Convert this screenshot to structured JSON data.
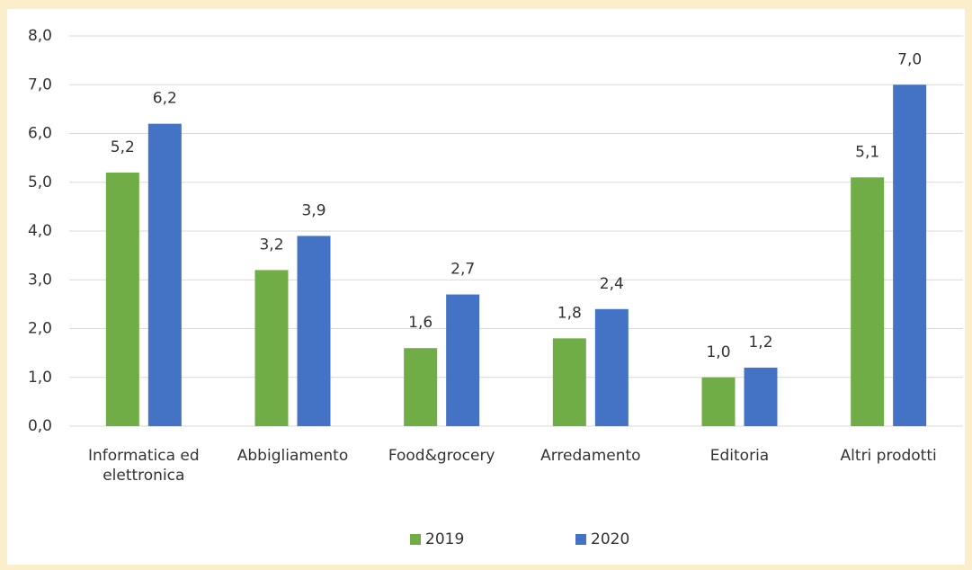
{
  "chart_data": {
    "type": "bar",
    "categories": [
      "Informatica ed elettronica",
      "Abbigliamento",
      "Food&grocery",
      "Arredamento",
      "Editoria",
      "Altri prodotti"
    ],
    "series": [
      {
        "name": "2019",
        "color": "#70ad47",
        "values": [
          5.2,
          3.2,
          1.6,
          1.8,
          1.0,
          5.1
        ],
        "value_labels": [
          "5,2",
          "3,2",
          "1,6",
          "1,8",
          "1,0",
          "5,1"
        ]
      },
      {
        "name": "2020",
        "color": "#4472c4",
        "values": [
          6.2,
          3.9,
          2.7,
          2.4,
          1.2,
          7.0
        ],
        "value_labels": [
          "6,2",
          "3,9",
          "2,7",
          "2,4",
          "1,2",
          "7,0"
        ]
      }
    ],
    "ylim": [
      0,
      8
    ],
    "yticks": [
      {
        "value": 0,
        "label": "0,0"
      },
      {
        "value": 1,
        "label": "1,0"
      },
      {
        "value": 2,
        "label": "2,0"
      },
      {
        "value": 3,
        "label": "3,0"
      },
      {
        "value": 4,
        "label": "4,0"
      },
      {
        "value": 5,
        "label": "5,0"
      },
      {
        "value": 6,
        "label": "6,0"
      },
      {
        "value": 7,
        "label": "7,0"
      },
      {
        "value": 8,
        "label": "8,0"
      }
    ],
    "grid": true,
    "legend": "bottom"
  }
}
